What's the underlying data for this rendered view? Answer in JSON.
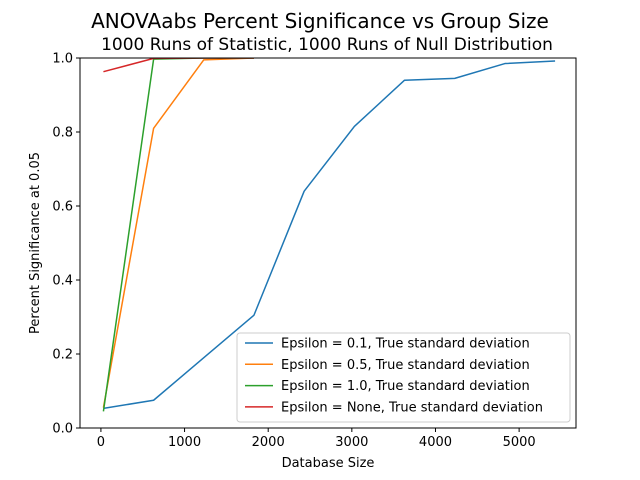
{
  "chart_data": {
    "type": "line",
    "title": "ANOVAabs Percent Significance vs Group Size",
    "subtitle": "1000 Runs of Statistic, 1000 Runs of Null Distribution",
    "xlabel": "Database Size",
    "ylabel": "Percent Significance at 0.05",
    "xlim": [
      -250,
      5680
    ],
    "ylim": [
      0.0,
      1.0
    ],
    "xticks": [
      0,
      1000,
      2000,
      3000,
      4000,
      5000
    ],
    "xtick_labels": [
      "0",
      "1000",
      "2000",
      "3000",
      "4000",
      "5000"
    ],
    "yticks": [
      0.0,
      0.2,
      0.4,
      0.6,
      0.8,
      1.0
    ],
    "ytick_labels": [
      "0.0",
      "0.2",
      "0.4",
      "0.6",
      "0.8",
      "1.0"
    ],
    "grid": false,
    "legend_position": "lower-right",
    "series": [
      {
        "name": "Epsilon = 0.1, True standard deviation",
        "color": "#1f77b4",
        "x": [
          30,
          630,
          1230,
          1830,
          2430,
          3030,
          3630,
          4230,
          4830,
          5430
        ],
        "y": [
          0.053,
          0.075,
          0.19,
          0.305,
          0.64,
          0.815,
          0.94,
          0.945,
          0.985,
          0.992
        ]
      },
      {
        "name": "Epsilon = 0.5, True standard deviation",
        "color": "#ff7f0e",
        "x": [
          30,
          630,
          1230,
          1830
        ],
        "y": [
          0.055,
          0.81,
          0.995,
          1.0
        ]
      },
      {
        "name": "Epsilon = 1.0, True standard deviation",
        "color": "#2ca02c",
        "x": [
          30,
          630,
          1230,
          1830
        ],
        "y": [
          0.045,
          0.997,
          1.0,
          1.0
        ]
      },
      {
        "name": "Epsilon = None, True standard deviation",
        "color": "#d62728",
        "x": [
          30,
          630,
          1230,
          1830
        ],
        "y": [
          0.963,
          0.999,
          1.0,
          1.0
        ]
      }
    ]
  }
}
